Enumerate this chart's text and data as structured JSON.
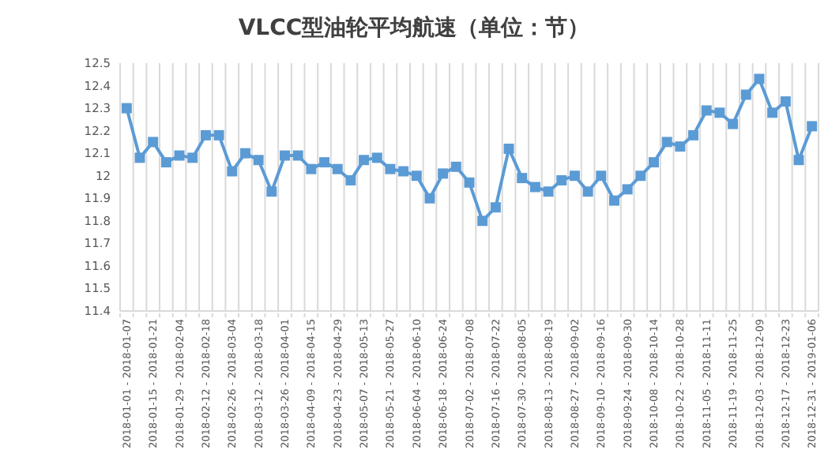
{
  "chart_data": {
    "type": "line",
    "title": "VLCC型油轮平均航速（单位：节）",
    "categories": [
      "2018-01-01 - 2018-01-07",
      null,
      "2018-01-15 - 2018-01-21",
      null,
      "2018-01-29 - 2018-02-04",
      null,
      "2018-02-12 - 2018-02-18",
      null,
      "2018-02-26 - 2018-03-04",
      null,
      "2018-03-12 - 2018-03-18",
      null,
      "2018-03-26 - 2018-04-01",
      null,
      "2018-04-09 - 2018-04-15",
      null,
      "2018-04-23 - 2018-04-29",
      null,
      "2018-05-07 - 2018-05-13",
      null,
      "2018-05-21 - 2018-05-27",
      null,
      "2018-06-04 - 2018-06-10",
      null,
      "2018-06-18 - 2018-06-24",
      null,
      "2018-07-02 - 2018-07-08",
      null,
      "2018-07-16 - 2018-07-22",
      null,
      "2018-07-30 - 2018-08-05",
      null,
      "2018-08-13 - 2018-08-19",
      null,
      "2018-08-27 - 2018-09-02",
      null,
      "2018-09-10 - 2018-09-16",
      null,
      "2018-09-24 - 2018-09-30",
      null,
      "2018-10-08 - 2018-10-14",
      null,
      "2018-10-22 - 2018-10-28",
      null,
      "2018-11-05 - 2018-11-11",
      null,
      "2018-11-19 - 2018-11-25",
      null,
      "2018-12-03 - 2018-12-09",
      null,
      "2018-12-17 - 2018-12-23",
      null,
      "2018-12-31 - 2019-01-06"
    ],
    "series": [
      {
        "color": "#5b9bd5",
        "values": [
          12.3,
          12.08,
          12.15,
          12.06,
          12.09,
          12.08,
          12.18,
          12.18,
          12.02,
          12.1,
          12.07,
          11.93,
          12.09,
          12.09,
          12.03,
          12.06,
          12.03,
          11.98,
          12.07,
          12.08,
          12.03,
          12.02,
          12.0,
          11.9,
          12.01,
          12.04,
          11.97,
          11.8,
          11.86,
          12.12,
          11.99,
          11.95,
          11.93,
          11.98,
          12.0,
          11.93,
          12.0,
          11.89,
          11.94,
          12.0,
          12.06,
          12.15,
          12.13,
          12.18,
          12.29,
          12.28,
          12.23,
          12.36,
          12.43,
          12.28,
          12.33,
          12.07,
          12.22
        ]
      }
    ],
    "ylim": [
      11.4,
      12.5
    ],
    "yticks": [
      11.4,
      11.5,
      11.6,
      11.7,
      11.8,
      11.9,
      12,
      12.1,
      12.2,
      12.3,
      12.4,
      12.5
    ],
    "grid": "x",
    "marker": "square",
    "line_style": "solid"
  }
}
